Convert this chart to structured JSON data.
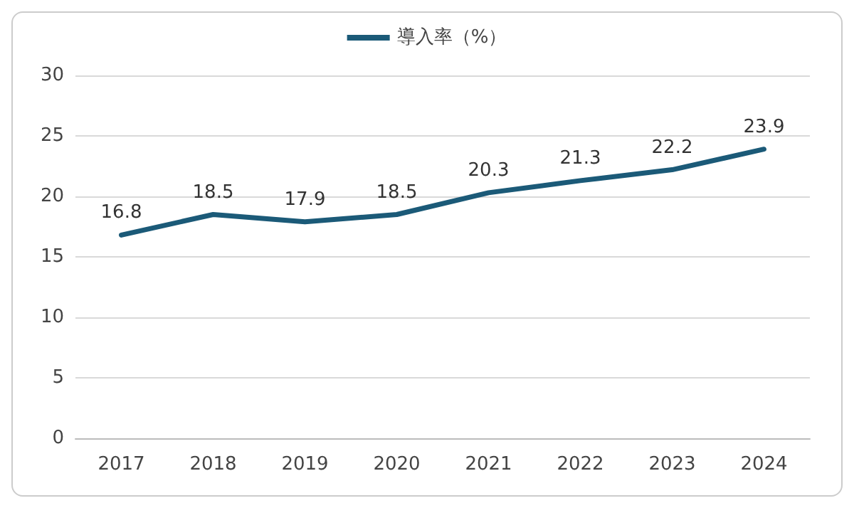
{
  "chart_data": {
    "type": "line",
    "categories": [
      "2017",
      "2018",
      "2019",
      "2020",
      "2021",
      "2022",
      "2023",
      "2024"
    ],
    "series": [
      {
        "name": "導入率（%）",
        "color": "#1b5a78",
        "values": [
          16.8,
          18.5,
          17.9,
          18.5,
          20.3,
          21.3,
          22.2,
          23.9
        ]
      }
    ],
    "ylim": [
      0,
      30
    ],
    "yticks": [
      0,
      5,
      10,
      15,
      20,
      25,
      30
    ],
    "grid": "y",
    "legend": "top",
    "data_labels": true,
    "marker": "none"
  }
}
